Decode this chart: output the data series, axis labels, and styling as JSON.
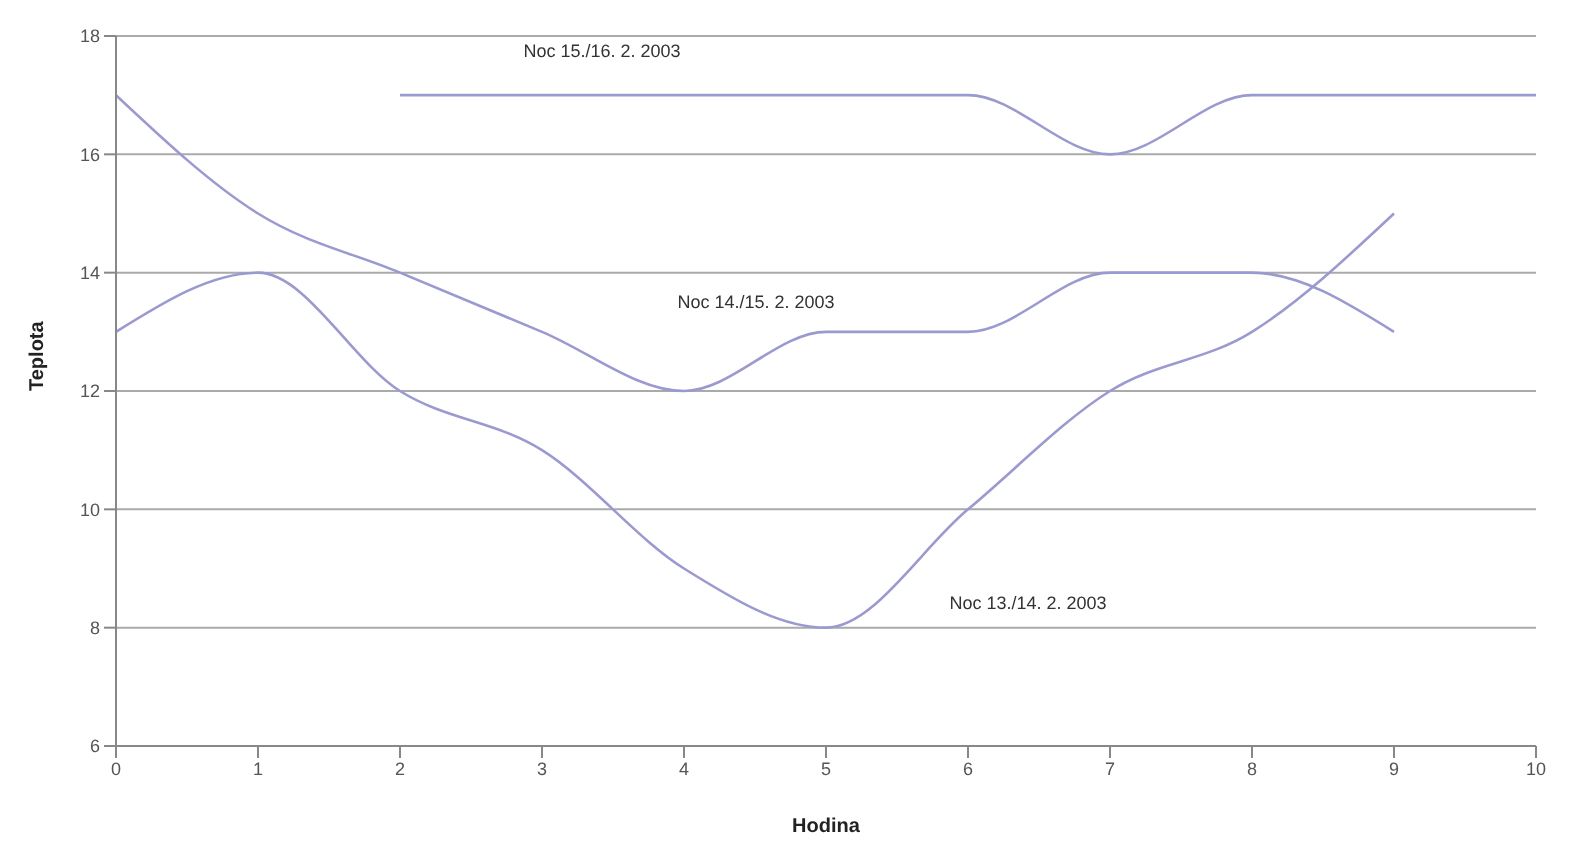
{
  "chart_data": {
    "type": "line",
    "xlabel": "Hodina",
    "ylabel": "Teplota",
    "series": [
      {
        "name": "Noc 13./14. 2. 2003",
        "color": "#9a9ad0",
        "x": [
          0,
          1,
          2,
          3,
          4,
          5,
          6,
          7,
          8,
          9
        ],
        "values": [
          13,
          14,
          12,
          11,
          9,
          8,
          10,
          12,
          13,
          15
        ]
      },
      {
        "name": "Noc 14./15. 2. 2003",
        "color": "#9a9ad0",
        "x": [
          0,
          1,
          2,
          3,
          4,
          5,
          6,
          7,
          8,
          9
        ],
        "values": [
          17,
          15,
          14,
          13,
          12,
          13,
          13,
          14,
          14,
          13
        ]
      },
      {
        "name": "Noc 15./16. 2. 2003",
        "color": "#9a9ad0",
        "x": [
          2,
          3,
          4,
          5,
          6,
          7,
          8,
          9,
          10
        ],
        "values": [
          17,
          17,
          17,
          17,
          17,
          16,
          17,
          17,
          17
        ]
      }
    ],
    "xlim": [
      0,
      10
    ],
    "xticks": [
      0,
      1,
      2,
      3,
      4,
      5,
      6,
      7,
      8,
      9,
      10
    ],
    "ylim": [
      6,
      18
    ],
    "yticks": [
      6,
      8,
      10,
      12,
      14,
      16,
      18
    ],
    "grid": "y",
    "marker": "none",
    "line_style": "solid"
  }
}
